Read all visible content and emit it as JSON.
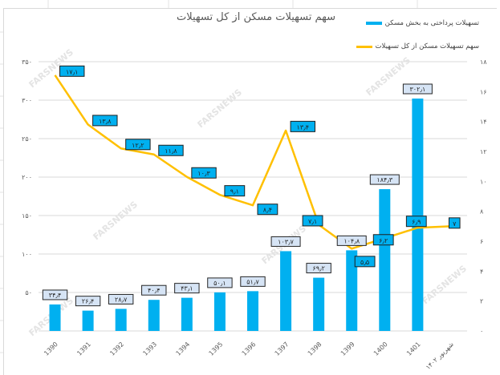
{
  "chart_data": {
    "type": "bar+line",
    "title": "سهم تسهیلات مسکن از کل تسهیلات",
    "categories": [
      "1390",
      "1391",
      "1392",
      "1393",
      "1394",
      "1395",
      "1396",
      "1397",
      "1398",
      "1399",
      "1400",
      "1401",
      "شهریور ۱۴۰۲"
    ],
    "series": [
      {
        "name": "تسهیلات پرداختی به بخش مسکن",
        "type": "bar",
        "axis": "left",
        "color": "#00B0F0",
        "values": [
          34.4,
          26.4,
          28.7,
          40.4,
          43.1,
          50.1,
          51.7,
          103.7,
          69.2,
          104.8,
          184.3,
          302.1,
          null
        ],
        "labels": [
          "۳۴٫۴",
          "۲۶٫۴",
          "۲۸٫۷",
          "۴۰٫۴",
          "۴۳٫۱",
          "۵۰٫۱",
          "۵۱٫۷",
          "۱۰۳٫۷",
          "۶۹٫۲",
          "۱۰۴٫۸",
          "۱۸۴٫۳",
          "۳۰۲٫۱",
          ""
        ]
      },
      {
        "name": "سهم تسهیلات مسکن از کل تسهیلات",
        "type": "line",
        "axis": "right",
        "color": "#FFC000",
        "values": [
          17.1,
          13.8,
          12.2,
          11.8,
          10.3,
          9.1,
          8.4,
          13.4,
          7.1,
          5.5,
          6.2,
          6.9,
          7
        ],
        "labels": [
          "۱۷٫۱",
          "۱۳٫۸",
          "۱۲٫۲",
          "۱۱٫۸",
          "۱۰٫۳",
          "۹٫۱",
          "۸٫۴",
          "۱۳٫۴",
          "۷٫۱",
          "۵٫۵",
          "۶٫۲",
          "۶٫۹",
          "۷"
        ]
      }
    ],
    "left_axis": {
      "ylim": [
        0,
        350
      ],
      "ticks": [
        "۰",
        "۵۰",
        "۱۰۰",
        "۱۵۰",
        "۲۰۰",
        "۲۵۰",
        "۳۰۰",
        "۳۵۰"
      ]
    },
    "right_axis": {
      "ylim": [
        0,
        18
      ],
      "ticks": [
        "۰",
        "۲",
        "۴",
        "۶",
        "۸",
        "۱۰",
        "۱۲",
        "۱۴",
        "۱۶",
        "۱۸"
      ]
    },
    "xlabel": "",
    "ylabel": "",
    "grid": true,
    "legend_position": "top-right"
  },
  "legend": {
    "bar_label": "تسهیلات پرداختی به بخش مسکن",
    "line_label": "سهم تسهیلات مسکن از کل تسهیلات"
  },
  "watermark": "FARSNEWS"
}
